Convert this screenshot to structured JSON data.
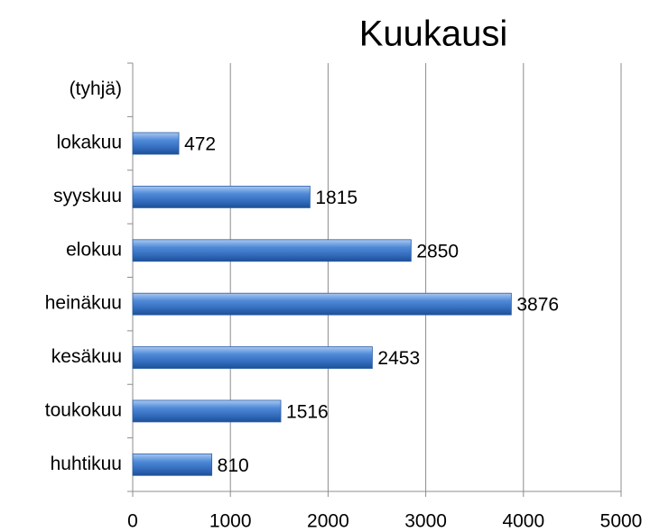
{
  "chart_data": {
    "type": "bar",
    "orientation": "horizontal",
    "title": "Kuukausi",
    "categories": [
      "huhtikuu",
      "toukokuu",
      "kesäkuu",
      "heinäkuu",
      "elokuu",
      "syyskuu",
      "lokakuu",
      "(tyhjä)"
    ],
    "values": [
      810,
      1516,
      2453,
      3876,
      2850,
      1815,
      472,
      null
    ],
    "color": "#3f7fd0",
    "xlim": [
      0,
      5000
    ],
    "xticks": [
      0,
      1000,
      2000,
      3000,
      4000,
      5000
    ],
    "grid": true
  }
}
